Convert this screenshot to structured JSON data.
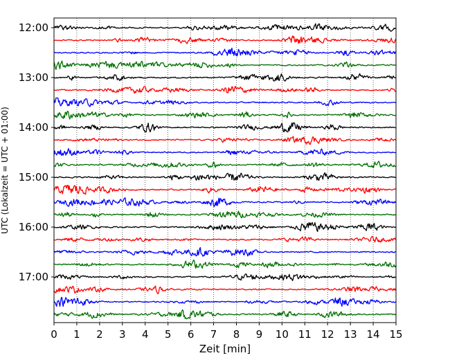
{
  "chart_data": {
    "type": "line",
    "title": "",
    "xlabel": "Zeit  [min]",
    "ylabel": "UTC (Lokalzeit = UTC + 01:00)",
    "xlim": [
      0,
      15
    ],
    "x_ticks": [
      "0",
      "1",
      "2",
      "3",
      "4",
      "5",
      "6",
      "7",
      "8",
      "9",
      "10",
      "11",
      "12",
      "13",
      "14",
      "15"
    ],
    "y_tick_labels": [
      "12:00",
      "13:00",
      "14:00",
      "15:00",
      "16:00",
      "17:00"
    ],
    "grid": "vertical dotted",
    "trace_colors": [
      "#000000",
      "#ff0000",
      "#0000ff",
      "#007000"
    ],
    "traces": [
      {
        "start": "12:00",
        "color": "#000000"
      },
      {
        "start": "12:15",
        "color": "#ff0000"
      },
      {
        "start": "12:30",
        "color": "#0000ff"
      },
      {
        "start": "12:45",
        "color": "#007000"
      },
      {
        "start": "13:00",
        "color": "#000000"
      },
      {
        "start": "13:15",
        "color": "#ff0000"
      },
      {
        "start": "13:30",
        "color": "#0000ff"
      },
      {
        "start": "13:45",
        "color": "#007000"
      },
      {
        "start": "14:00",
        "color": "#000000"
      },
      {
        "start": "14:15",
        "color": "#ff0000"
      },
      {
        "start": "14:30",
        "color": "#0000ff"
      },
      {
        "start": "14:45",
        "color": "#007000"
      },
      {
        "start": "15:00",
        "color": "#000000"
      },
      {
        "start": "15:15",
        "color": "#ff0000"
      },
      {
        "start": "15:30",
        "color": "#0000ff"
      },
      {
        "start": "15:45",
        "color": "#007000"
      },
      {
        "start": "16:00",
        "color": "#000000"
      },
      {
        "start": "16:15",
        "color": "#ff0000"
      },
      {
        "start": "16:30",
        "color": "#0000ff"
      },
      {
        "start": "16:45",
        "color": "#007000"
      },
      {
        "start": "17:00",
        "color": "#000000"
      },
      {
        "start": "17:15",
        "color": "#ff0000"
      },
      {
        "start": "17:30",
        "color": "#0000ff"
      },
      {
        "start": "17:45",
        "color": "#007000"
      }
    ]
  }
}
